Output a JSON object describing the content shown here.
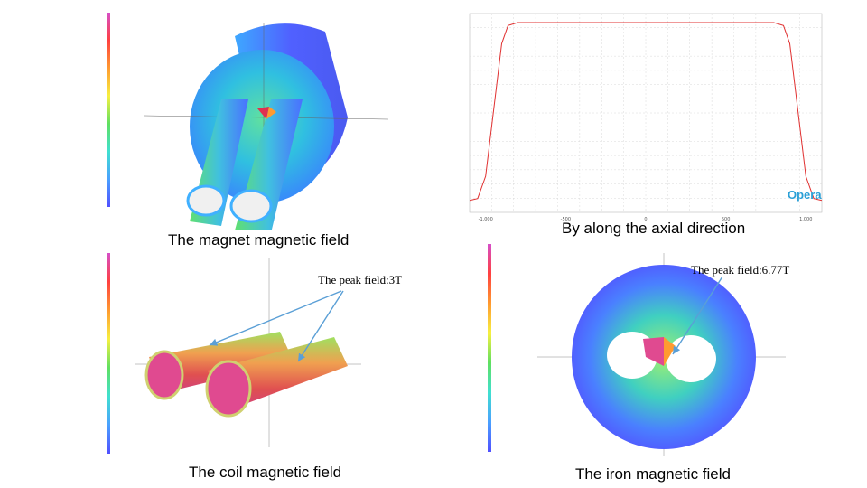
{
  "captions": {
    "magnet": "The magnet magnetic field",
    "axial": "By along the axial direction",
    "coil": "The coil magnetic field",
    "iron": "The iron magnetic field"
  },
  "annotations": {
    "coil_peak": "The peak field:3T",
    "iron_peak": "The peak field:6.77T"
  },
  "logo": {
    "name": "Opera"
  },
  "chart_data": {
    "type": "line",
    "title": "",
    "xlabel": "",
    "ylabel": "",
    "xlim": [
      -1100,
      1100
    ],
    "ylim": [
      -2,
      31
    ],
    "x_tick_labels": [
      "-1,000",
      "-500",
      "0",
      "500",
      "1,000"
    ],
    "x_ticks": [
      -1000,
      -500,
      0,
      500,
      1000
    ],
    "grid": true,
    "series": [
      {
        "color": "#e03030",
        "x": [
          -1100,
          -1050,
          -1000,
          -950,
          -900,
          -860,
          -800,
          -500,
          0,
          500,
          800,
          860,
          900,
          950,
          1000,
          1050,
          1100
        ],
        "y": [
          0,
          0.3,
          4,
          15,
          26,
          29,
          29.5,
          29.5,
          29.5,
          29.5,
          29.5,
          29,
          26,
          15,
          4,
          0.3,
          0
        ]
      }
    ]
  },
  "colors": {
    "accent_blue": "#4f6fff",
    "hot_magenta": "#e040a0",
    "line_red": "#e03030",
    "logo_blue": "#2a9fd6"
  }
}
